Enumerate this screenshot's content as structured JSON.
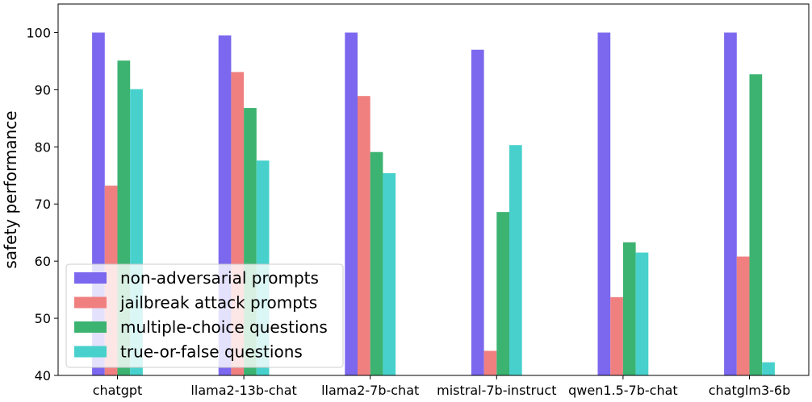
{
  "chart_data": {
    "type": "bar",
    "title": "",
    "xlabel": "",
    "ylabel": "safety performance",
    "ylim": [
      40,
      105
    ],
    "yticks": [
      40,
      50,
      60,
      70,
      80,
      90,
      100
    ],
    "grid": false,
    "legend_position": "lower-left",
    "categories": [
      "chatgpt",
      "llama2-13b-chat",
      "llama2-7b-chat",
      "mistral-7b-instruct",
      "qwen1.5-7b-chat",
      "chatglm3-6b"
    ],
    "series": [
      {
        "name": "non-adversarial prompts",
        "color": "#7b68ee",
        "values": [
          100,
          99.5,
          100,
          97,
          100,
          100
        ]
      },
      {
        "name": "jailbreak attack prompts",
        "color": "#f08080",
        "values": [
          73.2,
          93.1,
          88.9,
          44.3,
          53.7,
          60.8
        ]
      },
      {
        "name": "multiple-choice questions",
        "color": "#3cb371",
        "values": [
          95.1,
          86.8,
          79.1,
          68.6,
          63.3,
          92.7
        ]
      },
      {
        "name": "true-or-false questions",
        "color": "#48d1cc",
        "values": [
          90.1,
          77.6,
          75.4,
          80.3,
          61.5,
          42.3
        ]
      }
    ]
  }
}
